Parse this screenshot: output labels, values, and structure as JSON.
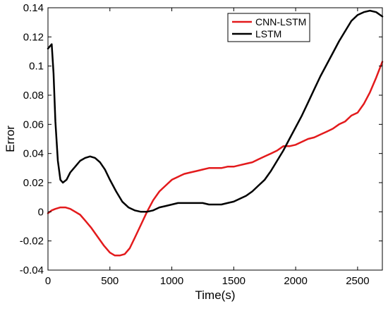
{
  "chart_data": {
    "type": "line",
    "title": "",
    "xlabel": "Time(s)",
    "ylabel": "Error",
    "xlim": [
      0,
      2700
    ],
    "ylim": [
      -0.04,
      0.14
    ],
    "xticks": [
      0,
      500,
      1000,
      1500,
      2000,
      2500
    ],
    "yticks": [
      -0.04,
      -0.02,
      0,
      0.02,
      0.04,
      0.06,
      0.08,
      0.1,
      0.12,
      0.14
    ],
    "ytick_labels": [
      "-0.04",
      "-0.02",
      "0",
      "0.02",
      "0.04",
      "0.06",
      "0.08",
      "0.1",
      "0.12",
      "0.14"
    ],
    "grid": false,
    "legend_position": "top-right",
    "series": [
      {
        "name": "CNN-LSTM",
        "color": "#e31a1c",
        "points": [
          [
            0,
            -0.001
          ],
          [
            30,
            0.001
          ],
          [
            60,
            0.002
          ],
          [
            100,
            0.003
          ],
          [
            140,
            0.003
          ],
          [
            180,
            0.002
          ],
          [
            220,
            0.0
          ],
          [
            260,
            -0.002
          ],
          [
            300,
            -0.006
          ],
          [
            350,
            -0.011
          ],
          [
            400,
            -0.017
          ],
          [
            450,
            -0.023
          ],
          [
            500,
            -0.028
          ],
          [
            540,
            -0.03
          ],
          [
            580,
            -0.03
          ],
          [
            620,
            -0.029
          ],
          [
            660,
            -0.025
          ],
          [
            700,
            -0.018
          ],
          [
            750,
            -0.009
          ],
          [
            800,
            0.0
          ],
          [
            850,
            0.008
          ],
          [
            900,
            0.014
          ],
          [
            950,
            0.018
          ],
          [
            1000,
            0.022
          ],
          [
            1050,
            0.024
          ],
          [
            1100,
            0.026
          ],
          [
            1150,
            0.027
          ],
          [
            1200,
            0.028
          ],
          [
            1250,
            0.029
          ],
          [
            1300,
            0.03
          ],
          [
            1350,
            0.03
          ],
          [
            1400,
            0.03
          ],
          [
            1450,
            0.031
          ],
          [
            1500,
            0.031
          ],
          [
            1550,
            0.032
          ],
          [
            1600,
            0.033
          ],
          [
            1650,
            0.034
          ],
          [
            1700,
            0.036
          ],
          [
            1750,
            0.038
          ],
          [
            1800,
            0.04
          ],
          [
            1850,
            0.042
          ],
          [
            1900,
            0.045
          ],
          [
            1950,
            0.045
          ],
          [
            2000,
            0.046
          ],
          [
            2050,
            0.048
          ],
          [
            2100,
            0.05
          ],
          [
            2150,
            0.051
          ],
          [
            2200,
            0.053
          ],
          [
            2250,
            0.055
          ],
          [
            2300,
            0.057
          ],
          [
            2350,
            0.06
          ],
          [
            2400,
            0.062
          ],
          [
            2450,
            0.066
          ],
          [
            2500,
            0.068
          ],
          [
            2550,
            0.074
          ],
          [
            2600,
            0.082
          ],
          [
            2650,
            0.092
          ],
          [
            2700,
            0.103
          ]
        ]
      },
      {
        "name": "LSTM",
        "color": "#000000",
        "points": [
          [
            0,
            0.112
          ],
          [
            20,
            0.114
          ],
          [
            30,
            0.115
          ],
          [
            45,
            0.095
          ],
          [
            60,
            0.062
          ],
          [
            80,
            0.035
          ],
          [
            100,
            0.022
          ],
          [
            120,
            0.02
          ],
          [
            150,
            0.022
          ],
          [
            180,
            0.027
          ],
          [
            220,
            0.031
          ],
          [
            260,
            0.035
          ],
          [
            300,
            0.037
          ],
          [
            340,
            0.038
          ],
          [
            380,
            0.037
          ],
          [
            420,
            0.034
          ],
          [
            460,
            0.029
          ],
          [
            500,
            0.022
          ],
          [
            550,
            0.014
          ],
          [
            600,
            0.007
          ],
          [
            650,
            0.003
          ],
          [
            700,
            0.001
          ],
          [
            750,
            0.0
          ],
          [
            800,
            0.0
          ],
          [
            850,
            0.001
          ],
          [
            900,
            0.003
          ],
          [
            950,
            0.004
          ],
          [
            1000,
            0.005
          ],
          [
            1050,
            0.006
          ],
          [
            1100,
            0.006
          ],
          [
            1150,
            0.006
          ],
          [
            1200,
            0.006
          ],
          [
            1250,
            0.006
          ],
          [
            1300,
            0.005
          ],
          [
            1350,
            0.005
          ],
          [
            1400,
            0.005
          ],
          [
            1450,
            0.006
          ],
          [
            1500,
            0.007
          ],
          [
            1550,
            0.009
          ],
          [
            1600,
            0.011
          ],
          [
            1650,
            0.014
          ],
          [
            1700,
            0.018
          ],
          [
            1750,
            0.022
          ],
          [
            1800,
            0.028
          ],
          [
            1850,
            0.035
          ],
          [
            1900,
            0.042
          ],
          [
            1950,
            0.05
          ],
          [
            2000,
            0.058
          ],
          [
            2050,
            0.066
          ],
          [
            2100,
            0.075
          ],
          [
            2150,
            0.084
          ],
          [
            2200,
            0.093
          ],
          [
            2250,
            0.101
          ],
          [
            2300,
            0.109
          ],
          [
            2350,
            0.117
          ],
          [
            2400,
            0.124
          ],
          [
            2450,
            0.131
          ],
          [
            2500,
            0.135
          ],
          [
            2550,
            0.137
          ],
          [
            2600,
            0.138
          ],
          [
            2650,
            0.137
          ],
          [
            2700,
            0.134
          ]
        ]
      }
    ]
  }
}
